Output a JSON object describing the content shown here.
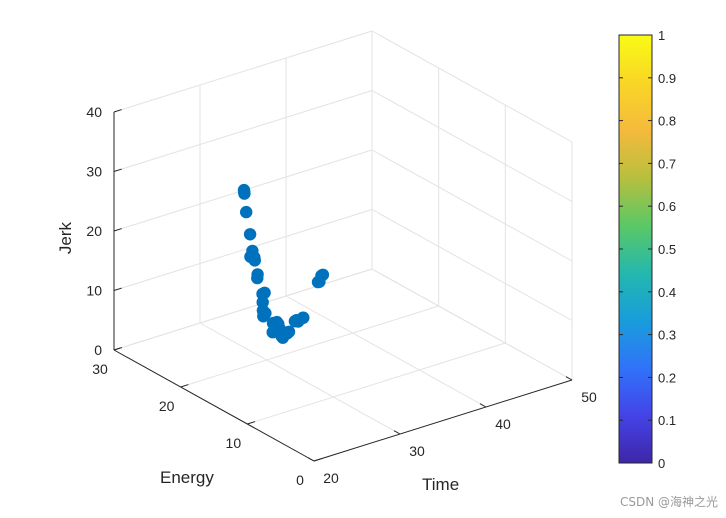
{
  "chart_data": {
    "type": "scatter3d",
    "title": "",
    "xlabel": "Time",
    "ylabel": "Energy",
    "zlabel": "Jerk",
    "xlim": [
      20,
      50
    ],
    "ylim": [
      0,
      30
    ],
    "zlim": [
      0,
      40
    ],
    "x_ticks": [
      "20",
      "30",
      "40",
      "50"
    ],
    "y_ticks": [
      "0",
      "10",
      "20",
      "30"
    ],
    "z_ticks": [
      "0",
      "10",
      "20",
      "30",
      "40"
    ],
    "marker_color": "#0072BD",
    "grid": true,
    "points": [
      {
        "x": 20.0,
        "y": 10.5,
        "z": 39
      },
      {
        "x": 20.1,
        "y": 10.6,
        "z": 38.6
      },
      {
        "x": 20.2,
        "y": 10.7,
        "z": 38.2
      },
      {
        "x": 20.8,
        "y": 11.2,
        "z": 34.5
      },
      {
        "x": 22.1,
        "y": 12.3,
        "z": 29.5
      },
      {
        "x": 22.6,
        "y": 12.6,
        "z": 26.3
      },
      {
        "x": 22.3,
        "y": 12.5,
        "z": 25.5
      },
      {
        "x": 23.3,
        "y": 13.2,
        "z": 24.5
      },
      {
        "x": 23.5,
        "y": 13.4,
        "z": 23.8
      },
      {
        "x": 24.3,
        "y": 14.0,
        "z": 20.7
      },
      {
        "x": 24.1,
        "y": 13.8,
        "z": 20.3
      },
      {
        "x": 25.8,
        "y": 15.2,
        "z": 16.0
      },
      {
        "x": 25.9,
        "y": 15.3,
        "z": 14.5
      },
      {
        "x": 26.5,
        "y": 15.8,
        "z": 15.5
      },
      {
        "x": 26.0,
        "y": 15.4,
        "z": 13.0
      },
      {
        "x": 26.2,
        "y": 15.6,
        "z": 11.8
      },
      {
        "x": 26.6,
        "y": 15.8,
        "z": 12.0
      },
      {
        "x": 28.8,
        "y": 17.5,
        "z": 8.3
      },
      {
        "x": 29.0,
        "y": 17.8,
        "z": 6.5
      },
      {
        "x": 30.1,
        "y": 18.6,
        "z": 7.2
      },
      {
        "x": 30.5,
        "y": 18.9,
        "z": 6.5
      },
      {
        "x": 31.0,
        "y": 19.3,
        "z": 5.2
      },
      {
        "x": 31.5,
        "y": 19.7,
        "z": 3.5
      },
      {
        "x": 31.8,
        "y": 19.9,
        "z": 3.0
      },
      {
        "x": 32.5,
        "y": 20.5,
        "z": 2.8
      },
      {
        "x": 33.1,
        "y": 20.9,
        "z": 2.5
      },
      {
        "x": 33.6,
        "y": 21.3,
        "z": 2.3
      },
      {
        "x": 35.3,
        "y": 22.6,
        "z": 2.5
      },
      {
        "x": 35.8,
        "y": 23.0,
        "z": 2.2
      },
      {
        "x": 36.3,
        "y": 23.4,
        "z": 1.5
      },
      {
        "x": 37.7,
        "y": 24.5,
        "z": 0.8
      },
      {
        "x": 37.9,
        "y": 24.7,
        "z": 0.6
      },
      {
        "x": 42.4,
        "y": 28.3,
        "z": 2.3
      },
      {
        "x": 42.8,
        "y": 28.6,
        "z": 2.0
      },
      {
        "x": 43.5,
        "y": 29.2,
        "z": 2.3
      },
      {
        "x": 43.9,
        "y": 29.5,
        "z": 2.1
      }
    ],
    "colorbar": {
      "limits": [
        0,
        1
      ],
      "ticks": [
        "0",
        "0.1",
        "0.2",
        "0.3",
        "0.4",
        "0.5",
        "0.6",
        "0.7",
        "0.8",
        "0.9",
        "1"
      ],
      "colormap": "parula",
      "stops": [
        "#3E26A8",
        "#4443E8",
        "#3073F9",
        "#199DDB",
        "#24B8AD",
        "#5BC865",
        "#B8BF3E",
        "#F5BA3C",
        "#F9D625",
        "#F9FB15"
      ]
    }
  },
  "watermark": "CSDN @海神之光"
}
